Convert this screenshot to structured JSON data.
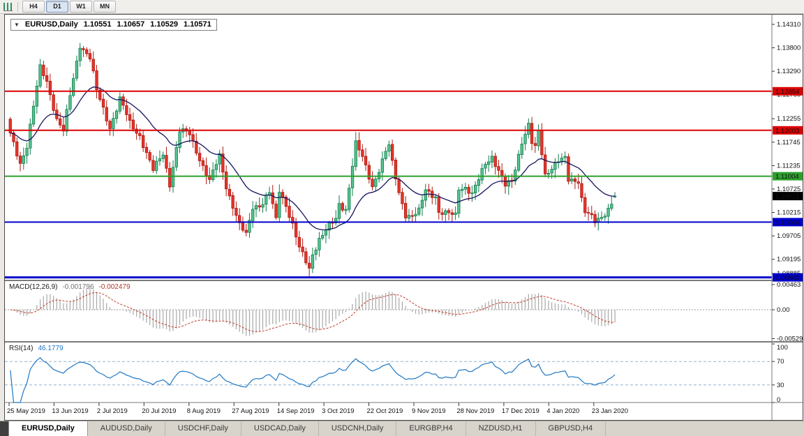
{
  "toolbar": {
    "timeframe_buttons": [
      "H4",
      "D1",
      "W1",
      "MN"
    ],
    "active_timeframe": "D1"
  },
  "header": {
    "collapse_glyph": "▼",
    "symbol": "EURUSD,Daily",
    "open": "1.10551",
    "high": "1.10657",
    "low": "1.10529",
    "close": "1.10571"
  },
  "macd": {
    "name": "MACD(12,26,9)",
    "main_value": "-0.001796",
    "signal_value": "-0.002479",
    "axis_labels": [
      "0.00463",
      "0.00",
      "-0.00529"
    ]
  },
  "rsi": {
    "name": "RSI(14)",
    "value": "46.1779",
    "axis_labels": [
      "100",
      "70",
      "30",
      "0"
    ]
  },
  "tabbar": {
    "active_index": 0,
    "tabs": [
      "EURUSD,Daily",
      "AUDUSD,Daily",
      "USDCHF,Daily",
      "USDCAD,Daily",
      "USDCNH,Daily",
      "EURGBP,H4",
      "NZDUSD,H1",
      "GBPUSD,H4"
    ]
  },
  "colors": {
    "bull_fill": "#57c28f",
    "bull_stroke": "#0f7d4d",
    "bear_fill": "#e5352b",
    "bear_stroke": "#b01810",
    "ma": "#14145e",
    "macd_hist": "#a8a8a8",
    "macd_signal": "#c0392b",
    "rsi_line": "#1f77c4",
    "rsi_levels": "#92b4d2",
    "level_red": "#dd0000",
    "level_green": "#2ca02c",
    "level_blue": "#0000cc",
    "current_badge": "#000000"
  },
  "chart_data": {
    "type": "candlestick",
    "symbol": "EURUSD",
    "timeframe": "Daily",
    "current_ohlc": {
      "open": 1.10551,
      "high": 1.10657,
      "low": 1.10529,
      "close": 1.10571
    },
    "candle_count": 183,
    "y_range": [
      1.0878,
      1.144
    ],
    "price_axis_ticks": [
      "1.14310",
      "1.13800",
      "1.13290",
      "1.12780",
      "1.12255",
      "1.11745",
      "1.11235",
      "1.10725",
      "1.10215",
      "1.09705",
      "1.09195",
      "1.08885"
    ],
    "horizontal_levels": [
      {
        "price": 1.12854,
        "label": "1.12854",
        "color_key": "level_red",
        "width": 2
      },
      {
        "price": 1.12003,
        "label": "1.12003",
        "color_key": "level_red",
        "width": 2
      },
      {
        "price": 1.11004,
        "label": "1.11004",
        "color_key": "level_green",
        "width": 2
      },
      {
        "price": 1.10004,
        "label": "1.10004",
        "color_key": "level_blue",
        "width": 2
      },
      {
        "price": 1.08802,
        "label": "1.08802",
        "color_key": "level_blue",
        "width": 3
      }
    ],
    "current_price": {
      "value": 1.10571,
      "label": "1.10571"
    },
    "date_labels": [
      "25 May 2019",
      "13 Jun 2019",
      "2 Jul 2019",
      "20 Jul 2019",
      "8 Aug 2019",
      "27 Aug 2019",
      "14 Sep 2019",
      "3 Oct 2019",
      "22 Oct 2019",
      "9 Nov 2019",
      "28 Nov 2019",
      "17 Dec 2019",
      "4 Jan 2020",
      "23 Jan 2020"
    ],
    "close_anchors": [
      [
        0,
        1.119
      ],
      [
        3,
        1.113
      ],
      [
        5,
        1.1168
      ],
      [
        9,
        1.1335
      ],
      [
        11,
        1.1308
      ],
      [
        14,
        1.1225
      ],
      [
        16,
        1.1198
      ],
      [
        18,
        1.1275
      ],
      [
        21,
        1.1388
      ],
      [
        24,
        1.1358
      ],
      [
        26,
        1.1285
      ],
      [
        30,
        1.1208
      ],
      [
        33,
        1.1268
      ],
      [
        36,
        1.1215
      ],
      [
        39,
        1.119
      ],
      [
        43,
        1.1112
      ],
      [
        46,
        1.115
      ],
      [
        48,
        1.1085
      ],
      [
        51,
        1.1198
      ],
      [
        54,
        1.1192
      ],
      [
        57,
        1.114
      ],
      [
        60,
        1.1088
      ],
      [
        63,
        1.1145
      ],
      [
        65,
        1.108
      ],
      [
        69,
        1.0992
      ],
      [
        71,
        1.0972
      ],
      [
        73,
        1.1035
      ],
      [
        76,
        1.1042
      ],
      [
        78,
        1.1064
      ],
      [
        80,
        1.1005
      ],
      [
        81,
        1.107
      ],
      [
        83,
        1.104
      ],
      [
        85,
        1.0995
      ],
      [
        87,
        1.0942
      ],
      [
        90,
        1.0899
      ],
      [
        91,
        1.0932
      ],
      [
        93,
        1.0965
      ],
      [
        95,
        1.0982
      ],
      [
        98,
        1.1006
      ],
      [
        99,
        1.104
      ],
      [
        101,
        1.103
      ],
      [
        103,
        1.1125
      ],
      [
        104,
        1.117
      ],
      [
        106,
        1.114
      ],
      [
        109,
        1.108
      ],
      [
        111,
        1.1115
      ],
      [
        113,
        1.1152
      ],
      [
        114,
        1.1166
      ],
      [
        115,
        1.1127
      ],
      [
        117,
        1.1067
      ],
      [
        119,
        1.1018
      ],
      [
        121,
        1.1011
      ],
      [
        123,
        1.1022
      ],
      [
        125,
        1.1072
      ],
      [
        128,
        1.1058
      ],
      [
        129,
        1.1021
      ],
      [
        131,
        1.1017
      ],
      [
        134,
        1.1017
      ],
      [
        135,
        1.1077
      ],
      [
        137,
        1.1077
      ],
      [
        139,
        1.1059
      ],
      [
        141,
        1.1092
      ],
      [
        143,
        1.113
      ],
      [
        145,
        1.1145
      ],
      [
        147,
        1.1112
      ],
      [
        149,
        1.1078
      ],
      [
        151,
        1.1089
      ],
      [
        154,
        1.1178
      ],
      [
        156,
        1.1212
      ],
      [
        157,
        1.1172
      ],
      [
        158,
        1.116
      ],
      [
        159,
        1.1196
      ],
      [
        161,
        1.1104
      ],
      [
        163,
        1.1122
      ],
      [
        165,
        1.1134
      ],
      [
        167,
        1.1136
      ],
      [
        168,
        1.109
      ],
      [
        171,
        1.1093
      ],
      [
        172,
        1.1054
      ],
      [
        173,
        1.1025
      ],
      [
        174,
        1.1019
      ],
      [
        176,
        1.0998
      ],
      [
        178,
        1.101
      ],
      [
        180,
        1.1032
      ],
      [
        182,
        1.10571
      ]
    ],
    "indicators": [
      {
        "type": "ma",
        "period": 20,
        "method": "ema"
      },
      {
        "type": "macd",
        "fast": 12,
        "slow": 26,
        "signal": 9,
        "range": [
          -0.0055,
          0.005
        ]
      },
      {
        "type": "rsi",
        "period": 14,
        "levels": [
          70,
          30
        ],
        "range": [
          0,
          100
        ]
      }
    ]
  }
}
